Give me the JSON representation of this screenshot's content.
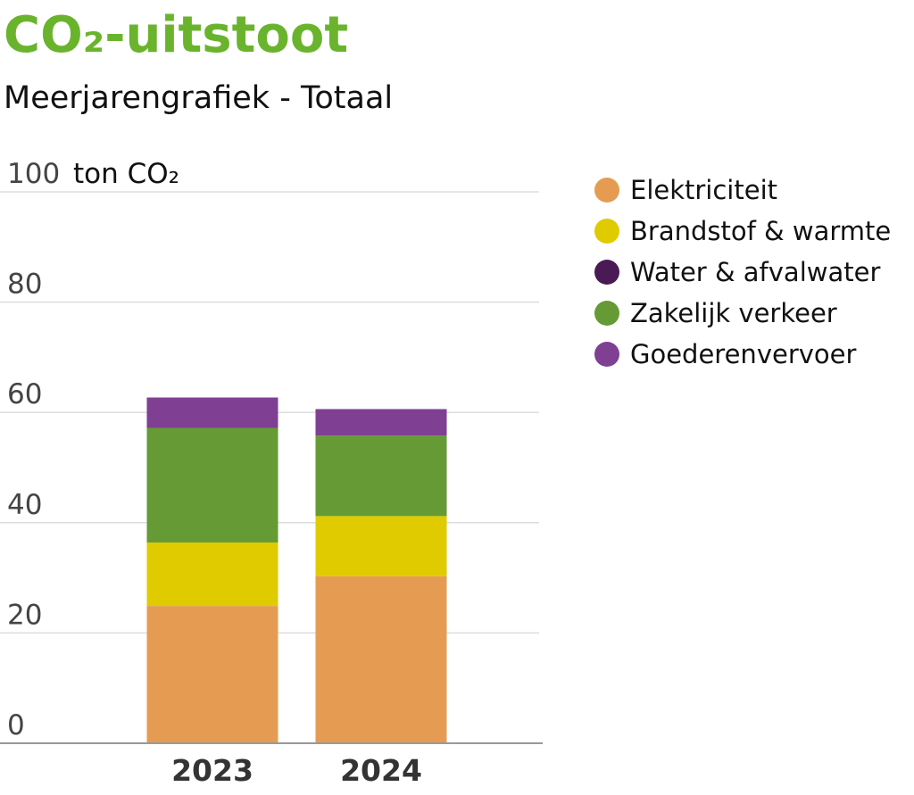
{
  "title": "CO₂-uitstoot",
  "subtitle": "Meerjarengrafiek - Totaal",
  "chart_data": {
    "type": "bar",
    "stacked": true,
    "unit": "ton CO₂",
    "categories": [
      "2023",
      "2024"
    ],
    "ylim": [
      0,
      100
    ],
    "yticks": [
      0,
      20,
      40,
      60,
      80,
      100
    ],
    "grid": true,
    "legend_position": "right",
    "series": [
      {
        "name": "Elektriciteit",
        "color": "#e59c52",
        "values": [
          24.9,
          30.3
        ]
      },
      {
        "name": "Brandstof & warmte",
        "color": "#dfcb00",
        "values": [
          11.5,
          10.9
        ]
      },
      {
        "name": "Water & afvalwater",
        "color": "#4a1a55",
        "values": [
          0,
          0
        ]
      },
      {
        "name": "Zakelijk verkeer",
        "color": "#659a34",
        "values": [
          20.8,
          14.6
        ]
      },
      {
        "name": "Goederenvervoer",
        "color": "#7f3f93",
        "values": [
          5.5,
          4.8
        ]
      }
    ]
  }
}
